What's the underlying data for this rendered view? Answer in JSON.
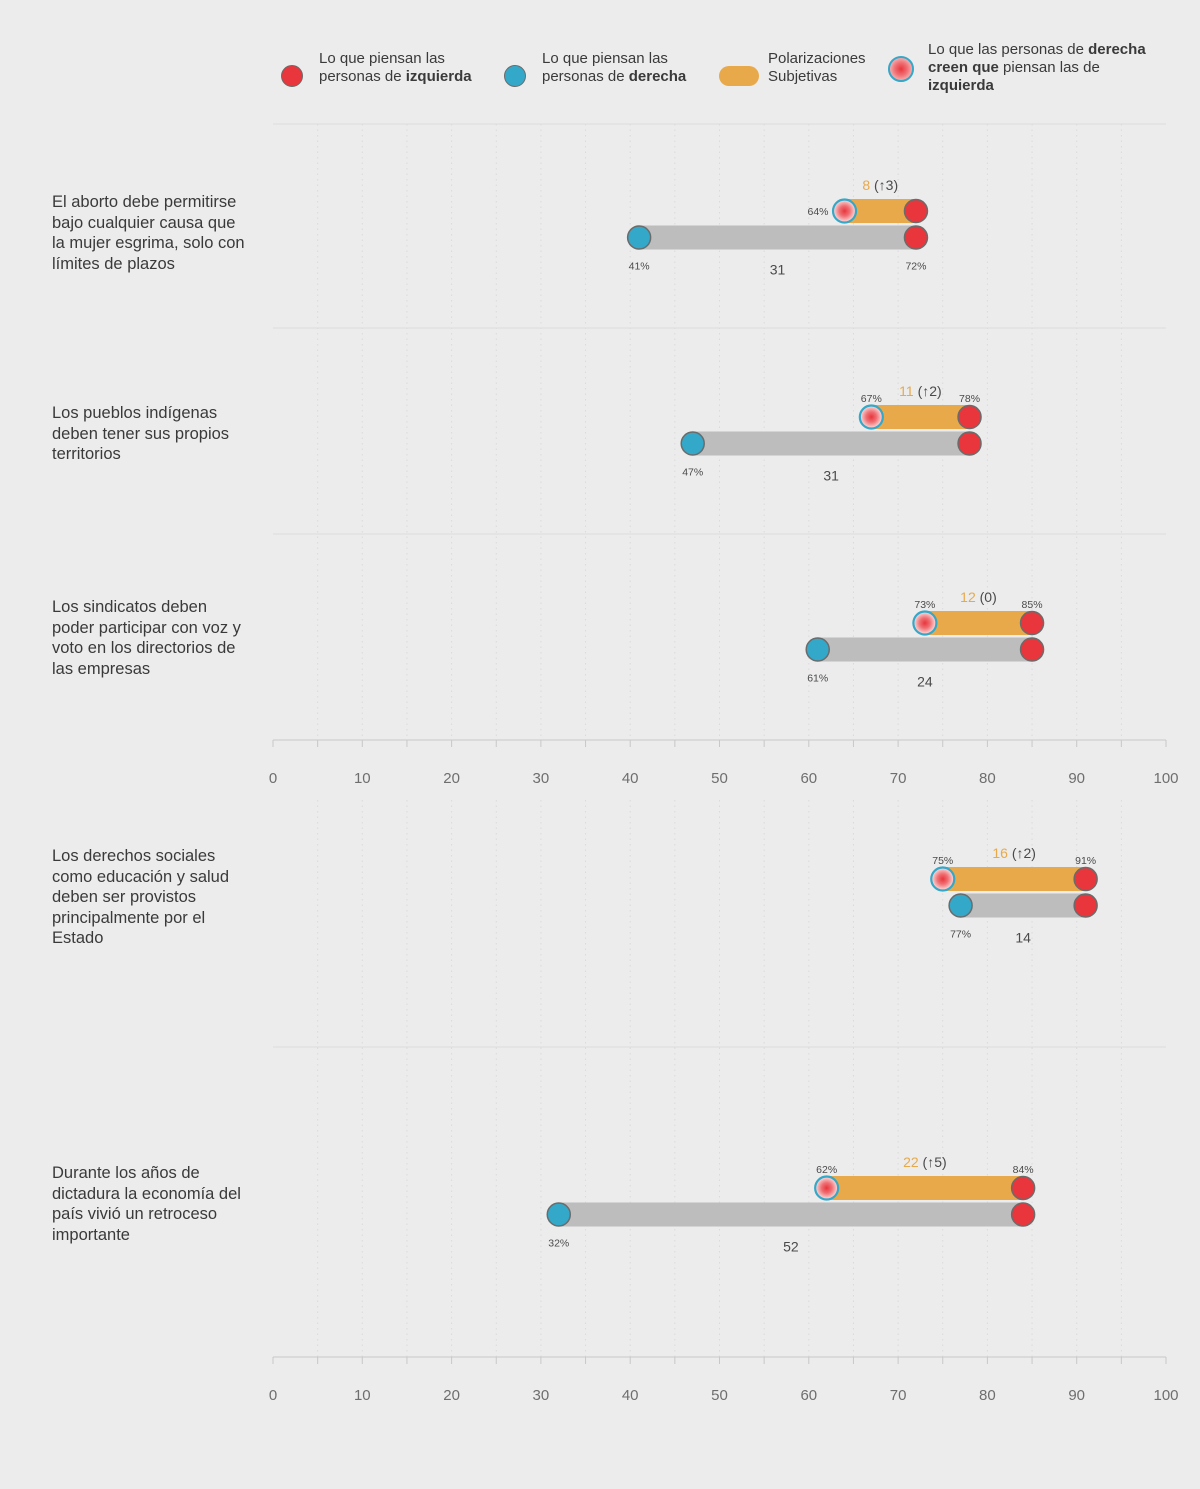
{
  "legend": {
    "left": {
      "line1": "Lo que piensan las",
      "line2_pre": "personas de ",
      "line2_bold": "izquierda"
    },
    "right": {
      "line1": "Lo que piensan las",
      "line2_pre": "personas de ",
      "line2_bold": "derecha"
    },
    "subjective": {
      "line1": "Polarizaciones",
      "line2": "Subjetivas"
    },
    "perceived": {
      "line1_pre": "Lo que las personas de ",
      "line1_bold": "derecha",
      "line2_bold": "creen que",
      "line2_post": " piensan las de",
      "line3_bold": "izquierda"
    }
  },
  "colors": {
    "left": "#e8363c",
    "right": "#34a8c8",
    "subjective": "#e8a94a",
    "real_gap": "#bdbdbd",
    "perceived_ring": "#34a8c8"
  },
  "chart_data": {
    "type": "dumbbell",
    "xlim": [
      0,
      100
    ],
    "ticks": [
      0,
      10,
      20,
      30,
      40,
      50,
      60,
      70,
      80,
      90,
      100
    ],
    "items": [
      {
        "question": "El aborto debe permitirse bajo cualquier causa que la mujer esgrima, solo con límites de plazos",
        "left": 72,
        "right": 41,
        "perceived": 64,
        "subjective_gap": "8",
        "change": "(↑3)",
        "real_gap": "31",
        "label_left": "72%",
        "label_right": "41%",
        "label_perceived": "64%",
        "label_left_position": "bottom",
        "label_perceived_position": "left"
      },
      {
        "question": "Los pueblos indígenas deben tener sus propios territorios",
        "left": 78,
        "right": 47,
        "perceived": 67,
        "subjective_gap": "11",
        "change": "(↑2)",
        "real_gap": "31",
        "label_left": "78%",
        "label_right": "47%",
        "label_perceived": "67%",
        "label_left_position": "top",
        "label_perceived_position": "top"
      },
      {
        "question": "Los sindicatos deben poder participar con voz y voto en los directorios de las empresas",
        "left": 85,
        "right": 61,
        "perceived": 73,
        "subjective_gap": "12",
        "change": "(0)",
        "real_gap": "24",
        "label_left": "85%",
        "label_right": "61%",
        "label_perceived": "73%",
        "label_left_position": "top",
        "label_perceived_position": "top"
      },
      {
        "question": "Los derechos sociales como educación y salud deben ser provistos principalmente por el Estado",
        "left": 91,
        "right": 77,
        "perceived": 75,
        "subjective_gap": "16",
        "change": "(↑2)",
        "real_gap": "14",
        "label_left": "91%",
        "label_right": "77%",
        "label_perceived": "75%",
        "label_left_position": "top",
        "label_perceived_position": "top"
      },
      {
        "question": "Durante los años de dictadura la economía del país vivió un retroceso importante",
        "left": 84,
        "right": 32,
        "perceived": 62,
        "subjective_gap": "22",
        "change": "(↑5)",
        "real_gap": "52",
        "label_left": "84%",
        "label_right": "32%",
        "label_perceived": "62%",
        "label_left_position": "top",
        "label_perceived_position": "top"
      }
    ]
  }
}
